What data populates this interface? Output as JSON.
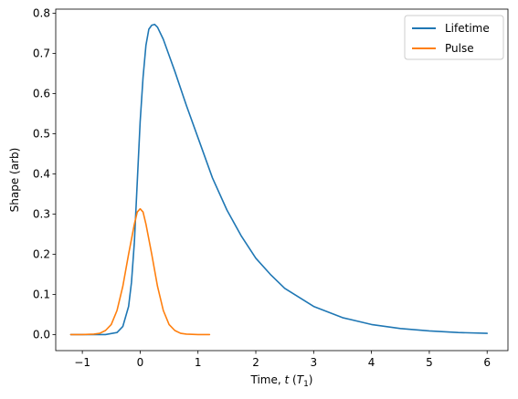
{
  "chart_data": {
    "type": "line",
    "xlabel_prefix": "Time, ",
    "xlabel_var": "t",
    "xlabel_unit_open": " (",
    "xlabel_unit_var": "T",
    "xlabel_unit_sub": "1",
    "xlabel_unit_close": ")",
    "ylabel": "Shape (arb)",
    "xlim": [
      -1.46,
      6.36
    ],
    "ylim": [
      -0.04,
      0.81
    ],
    "xticks": [
      -1,
      0,
      1,
      2,
      3,
      4,
      5,
      6
    ],
    "xtick_labels": [
      "−1",
      "0",
      "1",
      "2",
      "3",
      "4",
      "5",
      "6"
    ],
    "yticks": [
      0.0,
      0.1,
      0.2,
      0.3,
      0.4,
      0.5,
      0.6,
      0.7,
      0.8
    ],
    "ytick_labels": [
      "0.0",
      "0.1",
      "0.2",
      "0.3",
      "0.4",
      "0.5",
      "0.6",
      "0.7",
      "0.8"
    ],
    "grid": false,
    "legend_position": "top-right",
    "series": [
      {
        "name": "Lifetime",
        "color": "#1f77b4",
        "x": [
          -1.2,
          -0.8,
          -0.6,
          -0.4,
          -0.3,
          -0.2,
          -0.15,
          -0.1,
          -0.05,
          0.0,
          0.05,
          0.1,
          0.15,
          0.2,
          0.25,
          0.3,
          0.4,
          0.5,
          0.6,
          0.8,
          1.0,
          1.25,
          1.5,
          1.75,
          2.0,
          2.25,
          2.5,
          3.0,
          3.5,
          4.0,
          4.5,
          5.0,
          5.5,
          6.0
        ],
        "y": [
          0.0,
          0.0,
          0.0,
          0.005,
          0.02,
          0.07,
          0.13,
          0.23,
          0.38,
          0.53,
          0.64,
          0.72,
          0.76,
          0.77,
          0.772,
          0.765,
          0.735,
          0.695,
          0.655,
          0.57,
          0.49,
          0.39,
          0.31,
          0.245,
          0.19,
          0.15,
          0.115,
          0.07,
          0.042,
          0.025,
          0.015,
          0.009,
          0.005,
          0.003
        ]
      },
      {
        "name": "Pulse",
        "color": "#ff7f0e",
        "x": [
          -1.2,
          -1.0,
          -0.8,
          -0.7,
          -0.6,
          -0.5,
          -0.4,
          -0.3,
          -0.2,
          -0.1,
          -0.05,
          0.0,
          0.05,
          0.1,
          0.2,
          0.3,
          0.4,
          0.5,
          0.6,
          0.7,
          0.8,
          1.0,
          1.2
        ],
        "y": [
          0.0,
          0.0,
          0.001,
          0.003,
          0.01,
          0.025,
          0.06,
          0.12,
          0.2,
          0.275,
          0.305,
          0.313,
          0.305,
          0.275,
          0.2,
          0.12,
          0.06,
          0.025,
          0.01,
          0.003,
          0.001,
          0.0,
          0.0
        ]
      }
    ]
  }
}
